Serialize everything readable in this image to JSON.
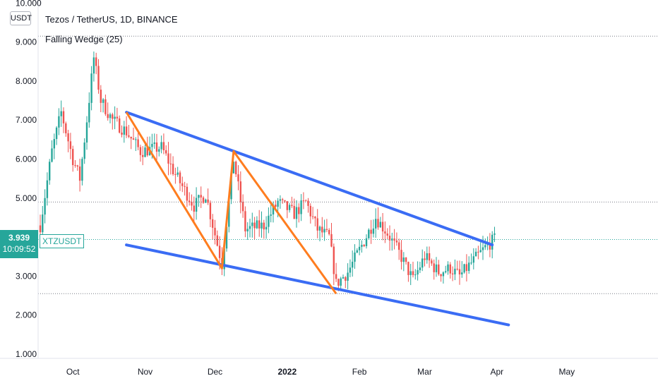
{
  "header": {
    "title": "Tezos / TetherUS, 1D, BINANCE",
    "indicator": "Falling Wedge (25)",
    "unit": "USDT"
  },
  "price_box": {
    "price": "3.939",
    "countdown": "10:09:52",
    "symbol": "XTZUSDT"
  },
  "colors": {
    "up": "#26a69a",
    "down": "#ef5350",
    "wedge_lines": "#3a6cf4",
    "zigzag": "#ff7d1f",
    "grid_dots": "#787b86"
  },
  "chart_data": {
    "type": "candlestick",
    "title": "Tezos / TetherUS, 1D, BINANCE",
    "ylabel": "USDT",
    "y_ticks": [
      "1.000",
      "2.000",
      "3.000",
      "4.000",
      "5.000",
      "6.000",
      "7.000",
      "8.000",
      "9.000",
      "10.000"
    ],
    "x_ticks": [
      "Oct",
      "Nov",
      "Dec",
      "2022",
      "Feb",
      "Mar",
      "Apr",
      "May"
    ],
    "ylim": [
      1.0,
      10.0
    ],
    "grid": false,
    "horizontal_levels": [
      9.15,
      4.9,
      2.55
    ],
    "current_price": 3.939,
    "wedge_upper_line": {
      "from": [
        "2021-10-24",
        7.2
      ],
      "to": [
        "2022-03-30",
        3.8
      ]
    },
    "wedge_lower_line": {
      "from": [
        "2021-10-24",
        3.8
      ],
      "to": [
        "2022-04-06",
        1.75
      ]
    },
    "zigzag": [
      [
        "2021-10-24",
        7.2
      ],
      [
        "2021-12-04",
        3.2
      ],
      [
        "2021-12-09",
        6.2
      ],
      [
        "2022-01-22",
        2.55
      ]
    ],
    "ohlc_summary": {
      "first_date": "2021-09-17",
      "last_date": "2022-03-31",
      "high": 9.0,
      "low": 2.55
    }
  }
}
